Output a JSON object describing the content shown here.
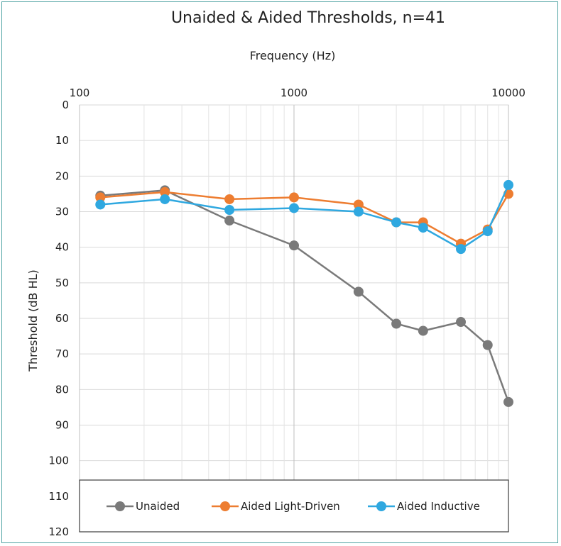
{
  "chart_data": {
    "type": "line",
    "title": "Unaided & Aided Thresholds, n=41",
    "xlabel": "Frequency (Hz)",
    "ylabel": "Threshold (dB HL)",
    "x_scale": "log",
    "xlim": [
      100,
      10000
    ],
    "ylim": [
      0,
      120
    ],
    "y_inverted": true,
    "x_ticks": [
      "100",
      "1000",
      "10000"
    ],
    "y_ticks": [
      "0",
      "10",
      "20",
      "30",
      "40",
      "50",
      "60",
      "70",
      "80",
      "90",
      "100",
      "110",
      "120"
    ],
    "x_axis_position": "top",
    "grid": true,
    "legend_position": "bottom",
    "x": [
      125,
      250,
      500,
      1000,
      2000,
      3000,
      4000,
      6000,
      8000,
      10000
    ],
    "series": [
      {
        "name": "Unaided",
        "color": "#7a7a7a",
        "x": [
          125,
          250,
          500,
          1000,
          2000,
          3000,
          4000,
          6000,
          8000,
          10000
        ],
        "values": [
          25.5,
          24,
          32.5,
          39.5,
          52.5,
          61.5,
          63.5,
          61,
          67.5,
          83.5
        ]
      },
      {
        "name": "Aided Light-Driven",
        "color": "#ed7d31",
        "x": [
          125,
          250,
          500,
          1000,
          2000,
          3000,
          4000,
          6000,
          8000,
          10000
        ],
        "values": [
          26,
          24.5,
          26.5,
          26,
          28,
          33,
          33,
          39,
          35,
          25
        ]
      },
      {
        "name": "Aided Inductive",
        "color": "#2fa8e0",
        "x": [
          125,
          250,
          500,
          1000,
          2000,
          3000,
          4000,
          6000,
          8000,
          10000
        ],
        "values": [
          28,
          26.5,
          29.5,
          29,
          30,
          33,
          34.5,
          40.5,
          35.5,
          22.5
        ]
      }
    ]
  }
}
